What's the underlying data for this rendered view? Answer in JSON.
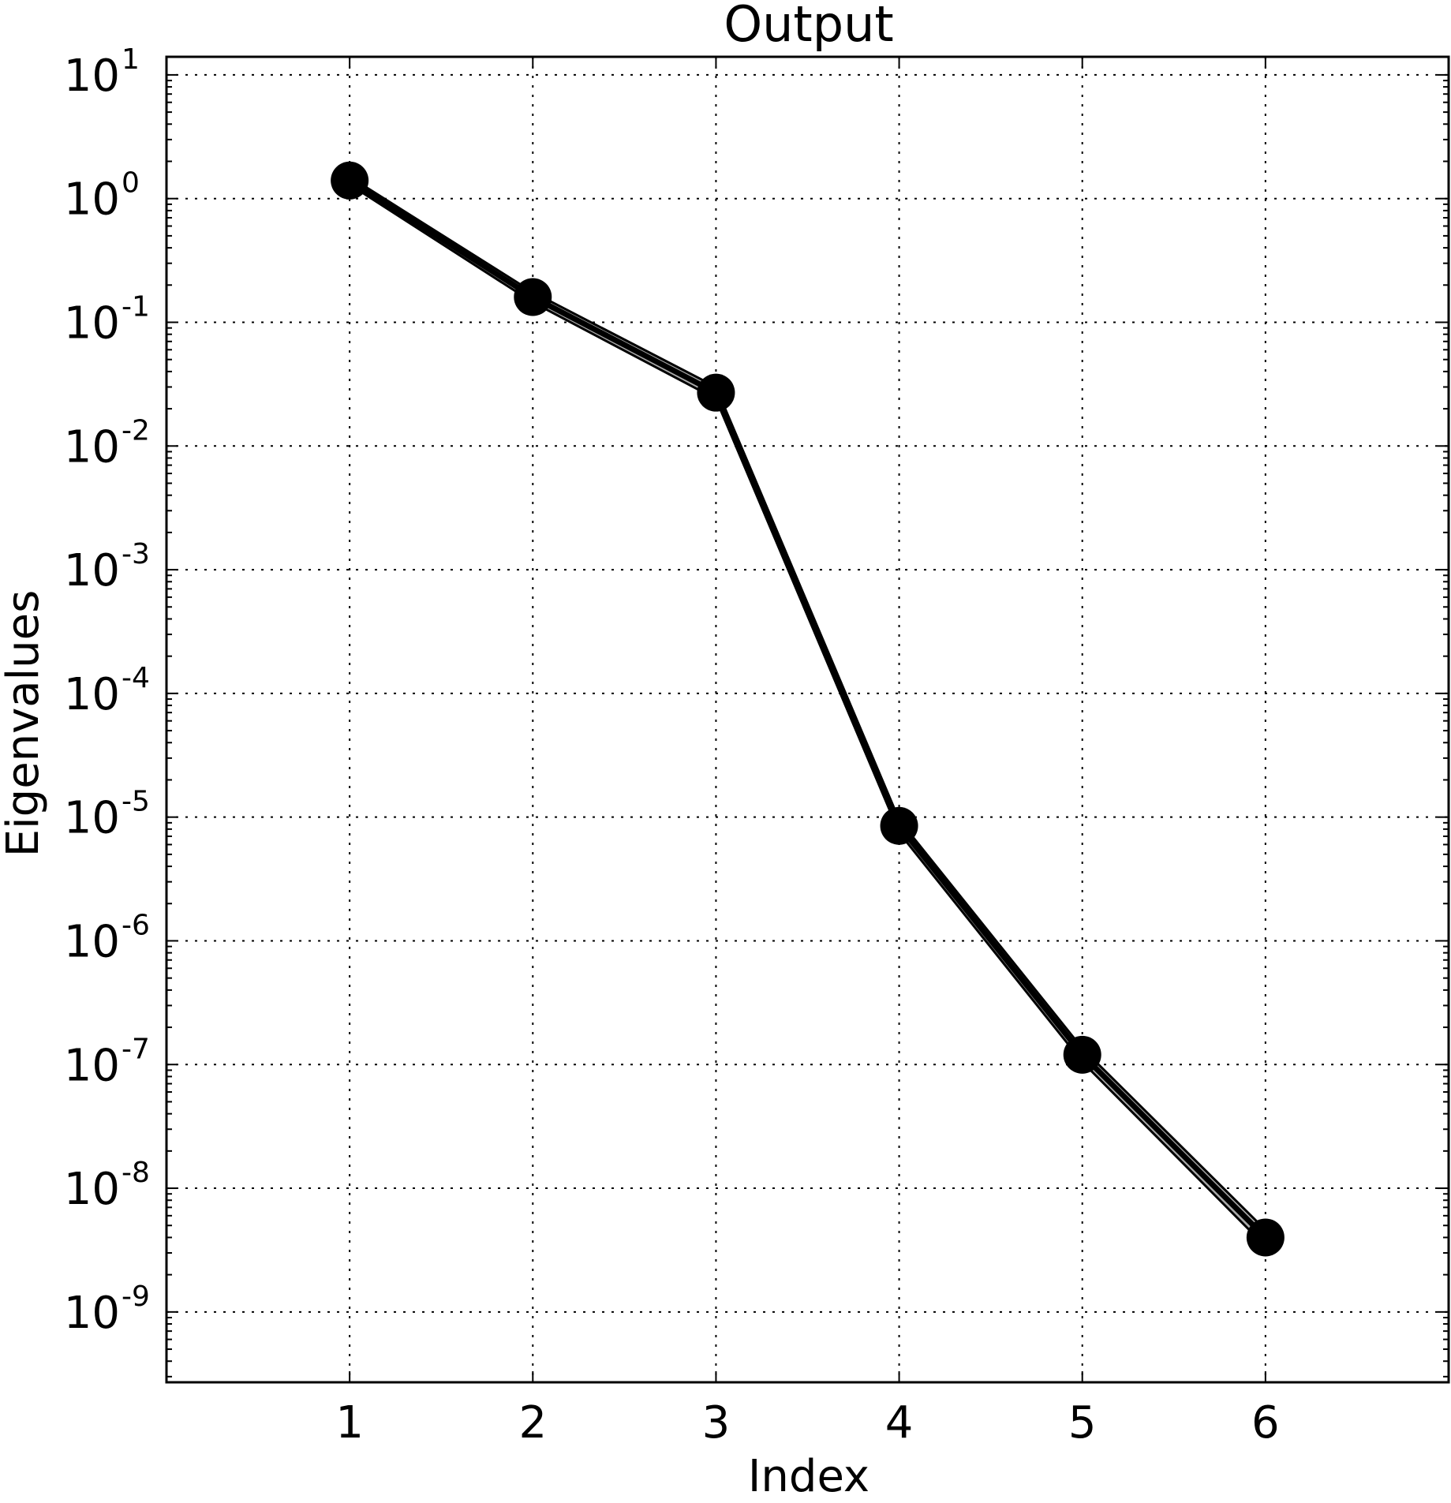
{
  "chart_data": {
    "type": "line",
    "title": "Output",
    "xlabel": "Index",
    "ylabel": "Eigenvalues",
    "x": [
      1,
      2,
      3,
      4,
      5,
      6
    ],
    "y": [
      1.4,
      0.16,
      0.027,
      8.5e-06,
      1.2e-07,
      4e-09
    ],
    "band_lower": [
      1.3,
      0.145,
      0.024,
      7.5e-06,
      1.05e-07,
      3.4e-09
    ],
    "band_upper": [
      1.5,
      0.175,
      0.03,
      9.5e-06,
      1.35e-07,
      4.6e-09
    ],
    "xlim": [
      0,
      7
    ],
    "ylim": [
      2.7e-10,
      14
    ],
    "yscale": "log",
    "grid": true,
    "xticks": [
      "1",
      "2",
      "3",
      "4",
      "5",
      "6"
    ],
    "yticks": [
      {
        "base": "10",
        "exp": "1"
      },
      {
        "base": "10",
        "exp": "0"
      },
      {
        "base": "10",
        "exp": "-1"
      },
      {
        "base": "10",
        "exp": "-2"
      },
      {
        "base": "10",
        "exp": "-3"
      },
      {
        "base": "10",
        "exp": "-4"
      },
      {
        "base": "10",
        "exp": "-5"
      },
      {
        "base": "10",
        "exp": "-6"
      },
      {
        "base": "10",
        "exp": "-7"
      },
      {
        "base": "10",
        "exp": "-8"
      },
      {
        "base": "10",
        "exp": "-9"
      }
    ],
    "colors": {
      "line": "#000000",
      "band": "#aaaaaa",
      "marker": "#000000"
    }
  }
}
